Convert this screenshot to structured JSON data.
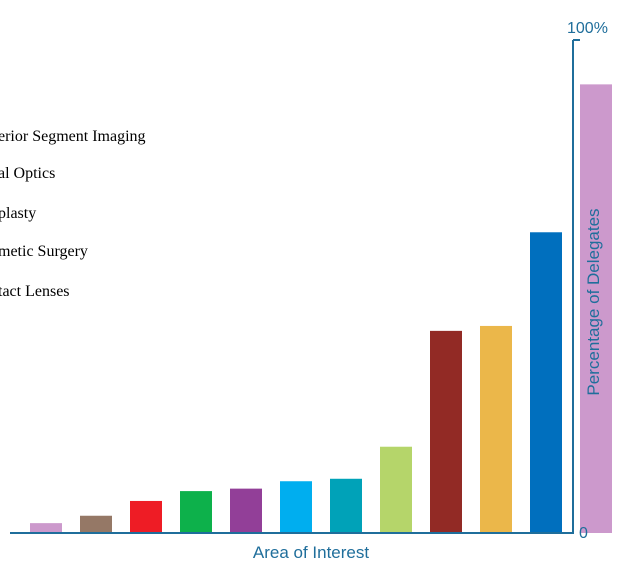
{
  "chart_data": {
    "type": "bar",
    "xlabel": "Area of Interest",
    "ylabel": "Percentage of Delegates",
    "ylim": [
      0,
      100
    ],
    "y_tick_labels": [
      "0",
      "100%"
    ],
    "legend_items": [
      "erior Segment Imaging",
      "al Optics",
      "plasty",
      "metic Surgery",
      "tact Lenses"
    ],
    "values": [
      2,
      3.5,
      6.5,
      8.5,
      9,
      10.5,
      11,
      17.5,
      41,
      42,
      61,
      91
    ],
    "colors": [
      "#cc99cc",
      "#957866",
      "#ee1c25",
      "#0db14b",
      "#923f98",
      "#00aeef",
      "#00a2b8",
      "#b5d56a",
      "#922a25",
      "#ebb74a",
      "#006fbe"
    ],
    "axis_color": "#1f6e9b"
  }
}
